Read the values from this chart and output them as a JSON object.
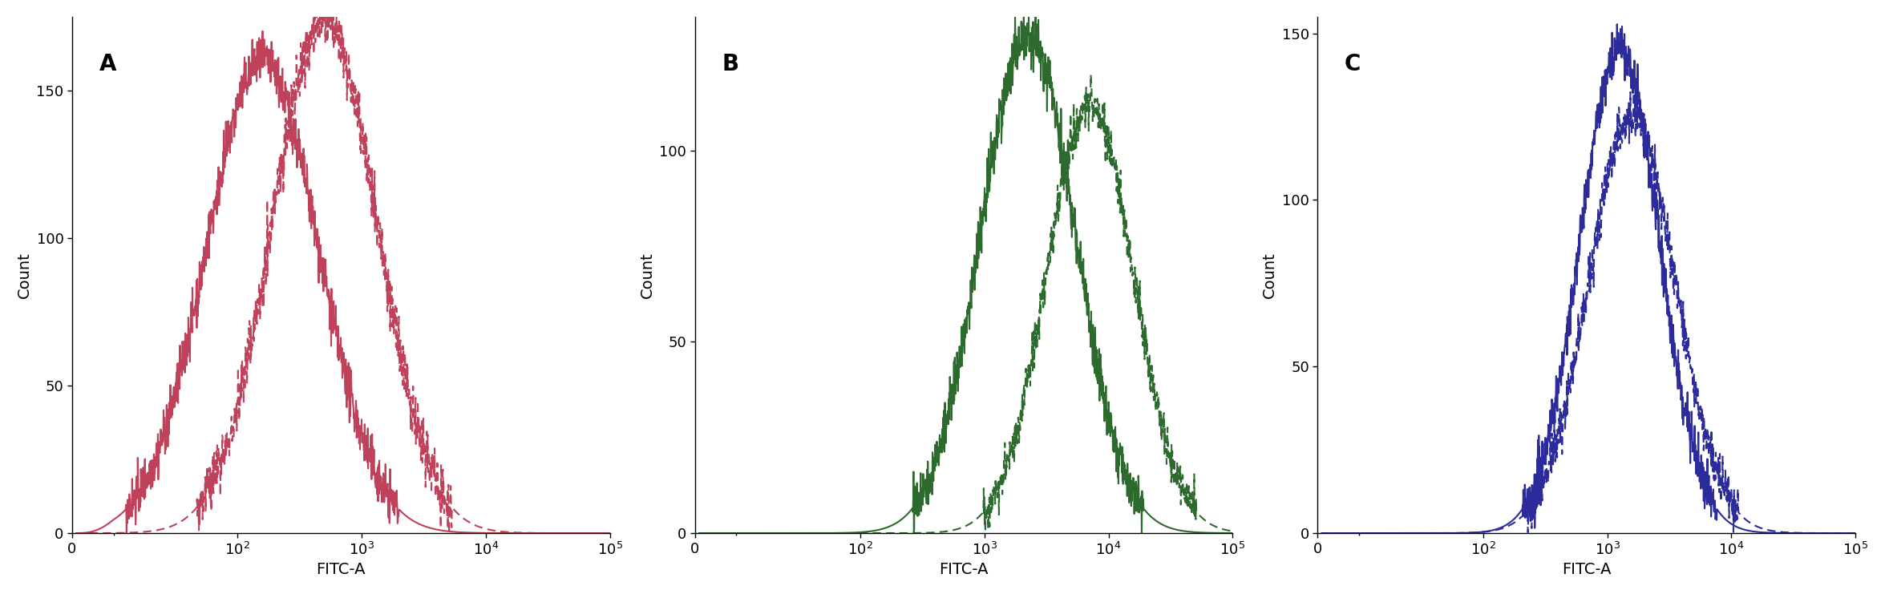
{
  "panels": [
    {
      "label": "A",
      "color": "#C0415A",
      "ylim": [
        0,
        175
      ],
      "yticks": [
        0,
        50,
        100,
        150
      ],
      "solid_peak_log": 2.2,
      "solid_sigma": 0.45,
      "solid_scale": 160,
      "dashed_peak_log": 2.7,
      "dashed_sigma": 0.42,
      "dashed_scale": 175
    },
    {
      "label": "B",
      "color": "#2D6A2D",
      "ylim": [
        0,
        135
      ],
      "yticks": [
        0,
        50,
        100
      ],
      "solid_peak_log": 3.35,
      "solid_sigma": 0.38,
      "solid_scale": 130,
      "dashed_peak_log": 3.85,
      "dashed_sigma": 0.35,
      "dashed_scale": 112
    },
    {
      "label": "C",
      "color": "#2B2B9B",
      "ylim": [
        0,
        155
      ],
      "yticks": [
        0,
        50,
        100,
        150
      ],
      "solid_peak_log": 3.1,
      "solid_sigma": 0.32,
      "solid_scale": 145,
      "dashed_peak_log": 3.2,
      "dashed_sigma": 0.35,
      "dashed_scale": 125
    }
  ],
  "xlabel": "FITC-A",
  "ylabel": "Count",
  "xmin": 0,
  "xmax": 100000,
  "background_color": "#ffffff",
  "linewidth": 1.5
}
